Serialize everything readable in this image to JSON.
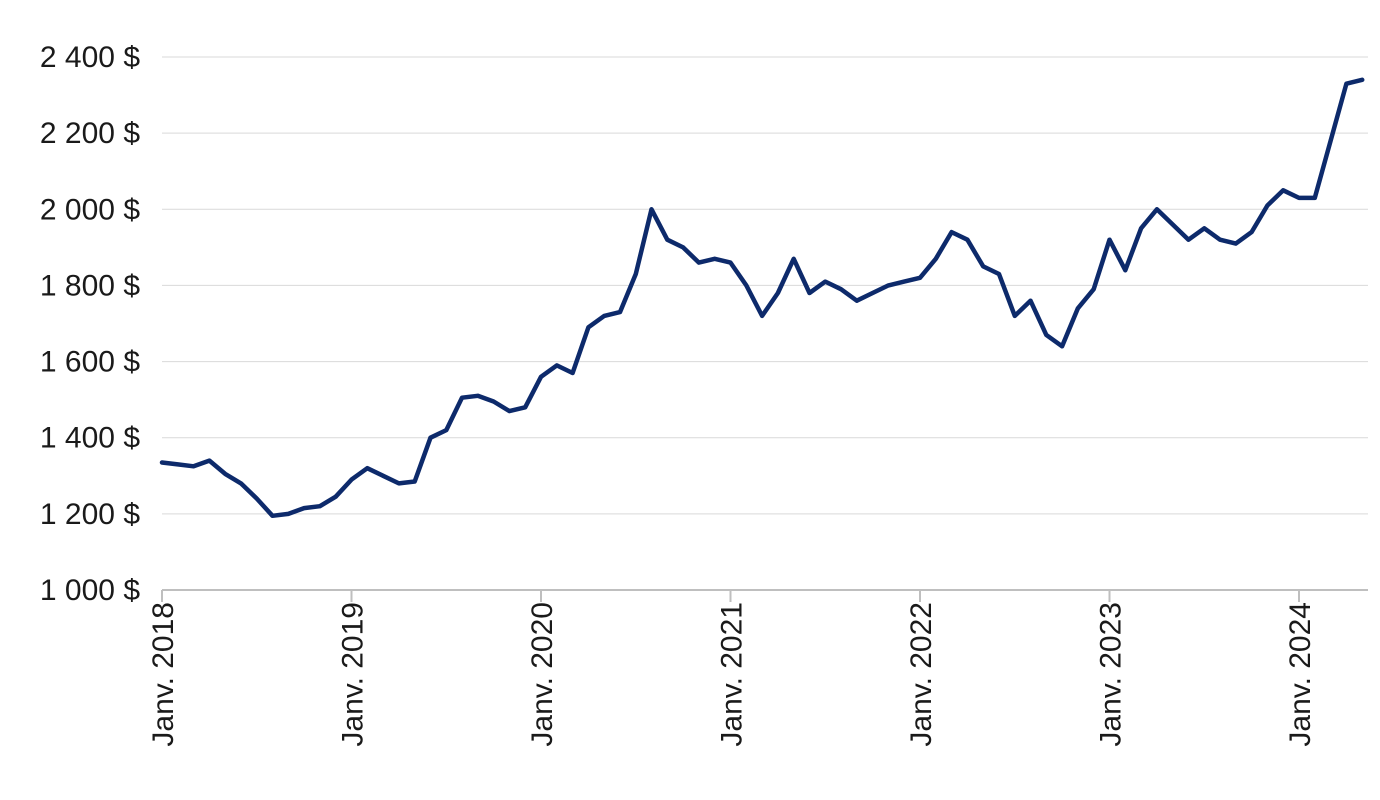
{
  "chart_data": {
    "type": "line",
    "title": "",
    "xlabel": "",
    "ylabel": "",
    "ylim": [
      1000,
      2400
    ],
    "xlim": [
      "2018-01",
      "2024-05"
    ],
    "grid": "horizontal",
    "legend": "none",
    "yticks": [
      {
        "value": 1000,
        "label": "1 000 $"
      },
      {
        "value": 1200,
        "label": "1 200 $"
      },
      {
        "value": 1400,
        "label": "1 400 $"
      },
      {
        "value": 1600,
        "label": "1 600 $"
      },
      {
        "value": 1800,
        "label": "1 800 $"
      },
      {
        "value": 2000,
        "label": "2 000 $"
      },
      {
        "value": 2200,
        "label": "2 200 $"
      },
      {
        "value": 2400,
        "label": "2 400 $"
      }
    ],
    "xticks": [
      {
        "value": "2018-01",
        "label": "Janv. 2018"
      },
      {
        "value": "2019-01",
        "label": "Janv. 2019"
      },
      {
        "value": "2020-01",
        "label": "Janv. 2020"
      },
      {
        "value": "2021-01",
        "label": "Janv. 2021"
      },
      {
        "value": "2022-01",
        "label": "Janv. 2022"
      },
      {
        "value": "2023-01",
        "label": "Janv. 2023"
      },
      {
        "value": "2024-01",
        "label": "Janv. 2024"
      }
    ],
    "colors": {
      "series": "#0d2a6b",
      "grid": "#d9d9d9",
      "axis": "#bfbfbf"
    },
    "series": [
      {
        "x": [
          "2018-01",
          "2018-02",
          "2018-03",
          "2018-04",
          "2018-05",
          "2018-06",
          "2018-07",
          "2018-08",
          "2018-09",
          "2018-10",
          "2018-11",
          "2018-12",
          "2019-01",
          "2019-02",
          "2019-03",
          "2019-04",
          "2019-05",
          "2019-06",
          "2019-07",
          "2019-08",
          "2019-09",
          "2019-10",
          "2019-11",
          "2019-12",
          "2020-01",
          "2020-02",
          "2020-03",
          "2020-04",
          "2020-05",
          "2020-06",
          "2020-07",
          "2020-08",
          "2020-09",
          "2020-10",
          "2020-11",
          "2020-12",
          "2021-01",
          "2021-02",
          "2021-03",
          "2021-04",
          "2021-05",
          "2021-06",
          "2021-07",
          "2021-08",
          "2021-09",
          "2021-10",
          "2021-11",
          "2021-12",
          "2022-01",
          "2022-02",
          "2022-03",
          "2022-04",
          "2022-05",
          "2022-06",
          "2022-07",
          "2022-08",
          "2022-09",
          "2022-10",
          "2022-11",
          "2022-12",
          "2023-01",
          "2023-02",
          "2023-03",
          "2023-04",
          "2023-05",
          "2023-06",
          "2023-07",
          "2023-08",
          "2023-09",
          "2023-10",
          "2023-11",
          "2023-12",
          "2024-01",
          "2024-02",
          "2024-03",
          "2024-04",
          "2024-05"
        ],
        "values": [
          1335,
          1330,
          1325,
          1340,
          1305,
          1280,
          1240,
          1195,
          1200,
          1215,
          1220,
          1245,
          1290,
          1320,
          1300,
          1280,
          1285,
          1400,
          1420,
          1505,
          1510,
          1495,
          1470,
          1480,
          1560,
          1590,
          1570,
          1690,
          1720,
          1730,
          1830,
          2000,
          1920,
          1900,
          1860,
          1870,
          1860,
          1800,
          1720,
          1780,
          1870,
          1780,
          1810,
          1790,
          1760,
          1780,
          1800,
          1810,
          1820,
          1870,
          1940,
          1920,
          1850,
          1830,
          1720,
          1760,
          1670,
          1640,
          1740,
          1790,
          1920,
          1840,
          1950,
          2000,
          1960,
          1920,
          1950,
          1920,
          1910,
          1940,
          2010,
          2050,
          2030,
          2030,
          2180,
          2330,
          2340
        ]
      }
    ]
  }
}
